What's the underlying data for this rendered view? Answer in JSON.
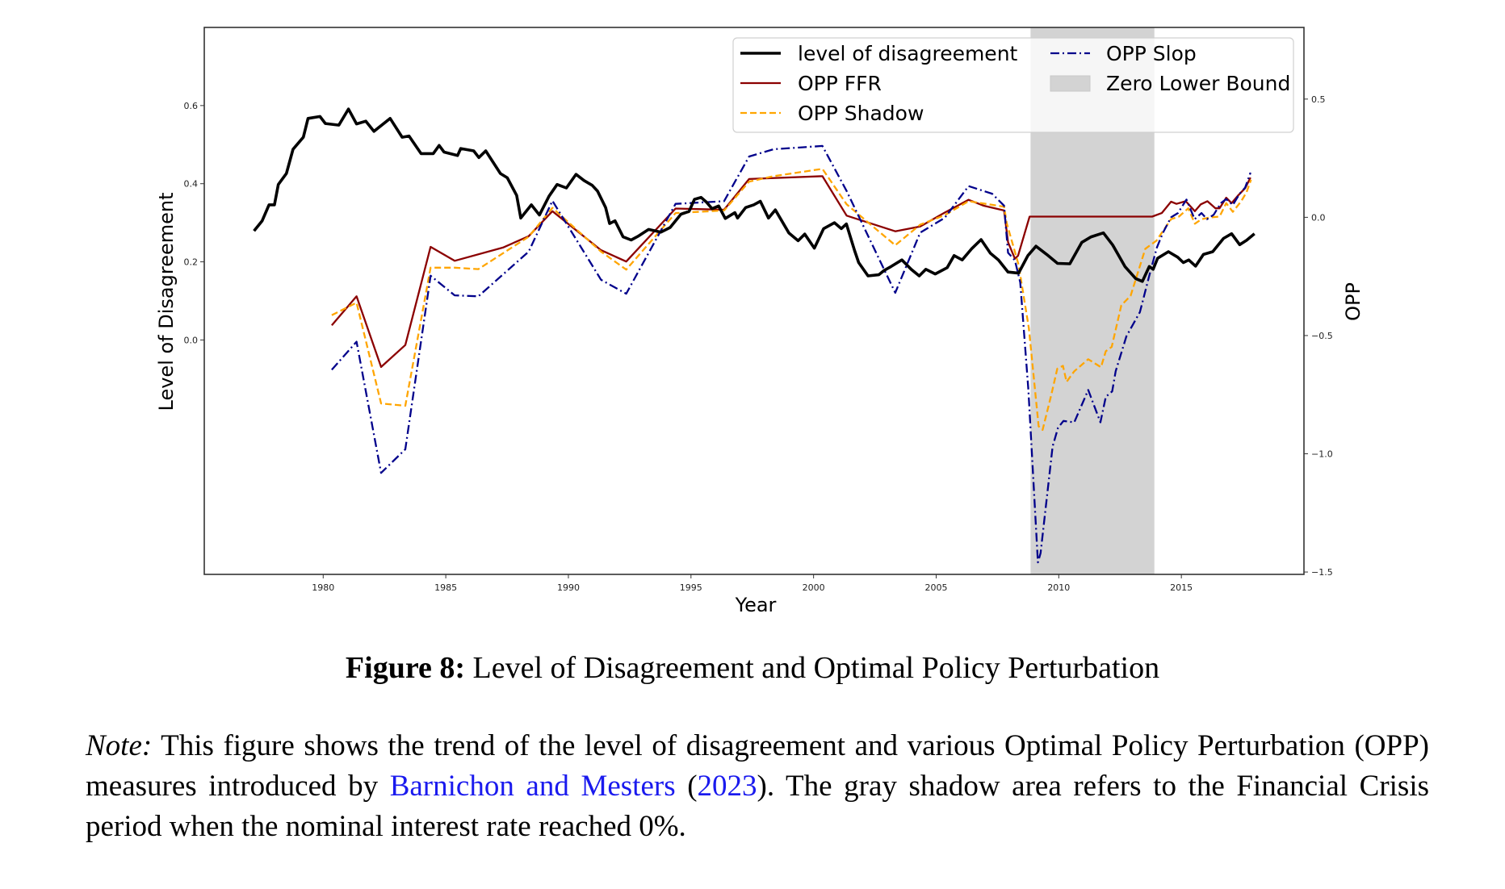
{
  "chart_data": {
    "type": "line",
    "title": "",
    "xlabel": "Year",
    "ylabel_left": "Level of Disagreement",
    "ylabel_right": "OPP",
    "xlim": [
      1975.15,
      2020.0
    ],
    "ylim_left": [
      -0.6,
      0.8
    ],
    "ylim_right": [
      -1.51,
      0.803
    ],
    "xticks": [
      1980,
      1985,
      1990,
      1995,
      2000,
      2005,
      2010,
      2015
    ],
    "xtick_labels": [
      "1980",
      "1985",
      "1990",
      "1995",
      "2000",
      "2005",
      "2010",
      "2015"
    ],
    "yticks_left": [
      0.0,
      0.2,
      0.4,
      0.6
    ],
    "ytick_labels_left": [
      "0.0",
      "0.2",
      "0.4",
      "0.6"
    ],
    "yticks_right": [
      -1.5,
      -1.0,
      -0.5,
      0.0,
      0.5
    ],
    "ytick_labels_right": [
      "−1.5",
      "−1.0",
      "−0.5",
      "0.0",
      "0.5"
    ],
    "grid": false,
    "legend_position": "top-right",
    "shaded_regions": [
      {
        "name": "Zero Lower Bound",
        "x_start": 2008.85,
        "x_end": 2013.9,
        "color": "#d3d3d3"
      }
    ],
    "series": [
      {
        "name": "level of disagreement",
        "axis": "left",
        "color": "#000000",
        "style": "solid",
        "x": [
          1977.18,
          1977.51,
          1977.79,
          1978.01,
          1978.17,
          1978.5,
          1978.77,
          1979.19,
          1979.38,
          1979.87,
          1980.09,
          1980.64,
          1981.03,
          1981.36,
          1981.74,
          1982.07,
          1982.73,
          1983.22,
          1983.5,
          1983.99,
          1984.49,
          1984.73,
          1984.93,
          1985.48,
          1985.61,
          1986.14,
          1986.35,
          1986.63,
          1987.23,
          1987.51,
          1987.89,
          1988.06,
          1988.49,
          1988.82,
          1989.21,
          1989.54,
          1989.92,
          1990.31,
          1990.64,
          1990.97,
          1991.19,
          1991.52,
          1991.68,
          1991.9,
          1992.23,
          1992.56,
          1992.83,
          1993.27,
          1993.77,
          1994.15,
          1994.59,
          1994.92,
          1995.14,
          1995.41,
          1995.63,
          1995.86,
          1996.13,
          1996.4,
          1996.79,
          1996.9,
          1997.23,
          1997.56,
          1997.83,
          1998.16,
          1998.44,
          1998.99,
          1999.37,
          1999.64,
          2000.03,
          2000.41,
          2000.85,
          2001.13,
          2001.34,
          2001.67,
          2001.84,
          2002.22,
          2002.66,
          2002.88,
          2003.16,
          2003.6,
          2003.98,
          2004.31,
          2004.58,
          2004.96,
          2005.45,
          2005.73,
          2006.06,
          2006.44,
          2006.83,
          2007.21,
          2007.54,
          2007.93,
          2008.36,
          2008.74,
          2009.07,
          2009.51,
          2009.95,
          2010.45,
          2010.94,
          2011.32,
          2011.82,
          2012.2,
          2012.7,
          2013.14,
          2013.41,
          2013.69,
          2013.85,
          2014.03,
          2014.47,
          2014.85,
          2015.08,
          2015.3,
          2015.58,
          2015.9,
          2016.28,
          2016.72,
          2017.05,
          2017.38,
          2017.66,
          2017.98
        ],
        "values": [
          0.279,
          0.305,
          0.346,
          0.346,
          0.398,
          0.426,
          0.488,
          0.519,
          0.567,
          0.572,
          0.554,
          0.55,
          0.591,
          0.553,
          0.56,
          0.534,
          0.567,
          0.519,
          0.522,
          0.477,
          0.477,
          0.498,
          0.481,
          0.472,
          0.49,
          0.484,
          0.467,
          0.484,
          0.426,
          0.415,
          0.37,
          0.312,
          0.346,
          0.32,
          0.368,
          0.398,
          0.389,
          0.424,
          0.408,
          0.396,
          0.381,
          0.339,
          0.298,
          0.305,
          0.264,
          0.256,
          0.265,
          0.283,
          0.276,
          0.288,
          0.322,
          0.329,
          0.36,
          0.365,
          0.353,
          0.336,
          0.343,
          0.311,
          0.326,
          0.312,
          0.339,
          0.346,
          0.355,
          0.312,
          0.333,
          0.274,
          0.254,
          0.271,
          0.235,
          0.285,
          0.3,
          0.285,
          0.297,
          0.229,
          0.198,
          0.164,
          0.167,
          0.178,
          0.188,
          0.205,
          0.181,
          0.164,
          0.181,
          0.169,
          0.185,
          0.216,
          0.205,
          0.233,
          0.257,
          0.222,
          0.205,
          0.174,
          0.171,
          0.216,
          0.24,
          0.219,
          0.196,
          0.195,
          0.25,
          0.264,
          0.274,
          0.243,
          0.188,
          0.157,
          0.15,
          0.188,
          0.181,
          0.209,
          0.226,
          0.212,
          0.198,
          0.205,
          0.189,
          0.219,
          0.226,
          0.26,
          0.272,
          0.244,
          0.255,
          0.272
        ]
      },
      {
        "name": "OPP FFR",
        "axis": "right",
        "color": "#8b0000",
        "style": "solid",
        "x": [
          1980.35,
          1981.36,
          1982.36,
          1983.35,
          1984.38,
          1985.36,
          1987.33,
          1988.38,
          1989.35,
          1991.33,
          1992.36,
          1994.37,
          1996.35,
          1997.37,
          2000.36,
          2001.35,
          2003.33,
          2004.35,
          2005.35,
          2006.32,
          2006.94,
          2007.77,
          2007.93,
          2008.21,
          2008.34,
          2008.81,
          2013.81,
          2014.2,
          2014.58,
          2014.8,
          2015.18,
          2015.55,
          2015.79,
          2016.06,
          2016.39,
          2016.56,
          2016.83,
          2017.05,
          2017.33,
          2017.6,
          2017.82
        ],
        "values": [
          -0.457,
          -0.334,
          -0.633,
          -0.54,
          -0.125,
          -0.184,
          -0.128,
          -0.08,
          0.026,
          -0.139,
          -0.187,
          0.037,
          0.032,
          0.162,
          0.174,
          0.007,
          -0.059,
          -0.039,
          0.02,
          0.074,
          0.049,
          0.029,
          -0.105,
          -0.175,
          -0.162,
          0.003,
          0.003,
          0.018,
          0.066,
          0.057,
          0.068,
          0.026,
          0.055,
          0.068,
          0.038,
          0.038,
          0.083,
          0.06,
          0.094,
          0.123,
          0.168
        ]
      },
      {
        "name": "OPP Shadow",
        "axis": "right",
        "color": "#ffa500",
        "style": "dashed",
        "x": [
          1980.35,
          1981.36,
          1982.36,
          1983.35,
          1984.38,
          1985.36,
          1986.33,
          1988.38,
          1989.35,
          1991.33,
          1992.36,
          1994.37,
          1996.35,
          1997.37,
          1998.37,
          2000.36,
          2001.35,
          2003.33,
          2004.35,
          2005.35,
          2006.32,
          2007.77,
          2007.88,
          2008.36,
          2008.78,
          2009.18,
          2009.34,
          2009.69,
          2009.94,
          2010.17,
          2010.32,
          2010.63,
          2011.2,
          2011.72,
          2011.92,
          2012.16,
          2012.55,
          2012.93,
          2013.53,
          2013.98,
          2014.58,
          2014.9,
          2015.28,
          2015.55,
          2015.82,
          2016.2,
          2016.56,
          2016.83,
          2017.1,
          2017.44,
          2017.66,
          2017.84
        ],
        "values": [
          -0.414,
          -0.361,
          -0.787,
          -0.797,
          -0.213,
          -0.213,
          -0.219,
          -0.082,
          0.04,
          -0.145,
          -0.221,
          0.018,
          0.029,
          0.151,
          0.174,
          0.205,
          0.055,
          -0.118,
          -0.031,
          0.009,
          0.068,
          0.045,
          -0.025,
          -0.2,
          -0.469,
          -0.884,
          -0.899,
          -0.753,
          -0.64,
          -0.628,
          -0.696,
          -0.651,
          -0.6,
          -0.634,
          -0.566,
          -0.548,
          -0.372,
          -0.332,
          -0.133,
          -0.099,
          -0.008,
          0.003,
          0.038,
          -0.027,
          -0.008,
          0.0,
          0.003,
          0.06,
          0.023,
          0.068,
          0.106,
          0.159
        ]
      },
      {
        "name": "OPP Slop",
        "axis": "right",
        "color": "#00008b",
        "style": "dashdot",
        "x": [
          1980.35,
          1981.36,
          1982.36,
          1983.35,
          1984.38,
          1985.36,
          1986.33,
          1988.38,
          1989.35,
          1991.33,
          1992.36,
          1994.37,
          1996.35,
          1997.37,
          1998.37,
          2000.36,
          2001.35,
          2003.33,
          2004.35,
          2005.35,
          2006.32,
          2007.28,
          2007.77,
          2007.93,
          2008.21,
          2008.43,
          2008.76,
          2009.15,
          2009.26,
          2009.75,
          2009.97,
          2010.19,
          2010.63,
          2011.2,
          2011.7,
          2011.92,
          2012.18,
          2012.32,
          2012.76,
          2013.31,
          2013.69,
          2014.0,
          2014.25,
          2014.58,
          2014.86,
          2015.21,
          2015.54,
          2015.82,
          2016.05,
          2016.32,
          2016.61,
          2016.83,
          2017.1,
          2017.38,
          2017.6,
          2017.82
        ],
        "values": [
          -0.645,
          -0.526,
          -1.081,
          -0.981,
          -0.247,
          -0.33,
          -0.334,
          -0.145,
          0.07,
          -0.264,
          -0.323,
          0.057,
          0.068,
          0.257,
          0.288,
          0.302,
          0.111,
          -0.319,
          -0.065,
          -0.002,
          0.132,
          0.1,
          0.049,
          -0.15,
          -0.182,
          -0.275,
          -0.73,
          -1.459,
          -1.42,
          -0.969,
          -0.89,
          -0.861,
          -0.867,
          -0.73,
          -0.867,
          -0.759,
          -0.736,
          -0.651,
          -0.503,
          -0.401,
          -0.247,
          -0.128,
          -0.065,
          0.0,
          0.018,
          0.075,
          -0.008,
          0.018,
          -0.008,
          0.011,
          0.06,
          0.077,
          0.052,
          0.1,
          0.125,
          0.189
        ]
      }
    ],
    "legend": [
      {
        "label": "level of disagreement",
        "series": "level of disagreement"
      },
      {
        "label": "OPP FFR",
        "series": "OPP FFR"
      },
      {
        "label": "OPP Shadow",
        "series": "OPP Shadow"
      },
      {
        "label": "OPP Slop",
        "series": "OPP Slop"
      },
      {
        "label": "Zero Lower Bound",
        "series": "Zero Lower Bound"
      }
    ]
  },
  "caption": {
    "label": "Figure 8:",
    "text": " Level of Disagreement and Optimal Policy Perturbation"
  },
  "note": {
    "label": "Note:",
    "text_before": " This figure shows the trend of the level of disagreement and various Optimal Policy Perturbation (OPP) measures introduced by ",
    "citation_authors": "Barnichon and Mesters",
    "citation_open": " (",
    "citation_year": "2023",
    "citation_close": ")",
    "text_after": ".  The gray shadow area refers to the Financial Crisis period when the nominal interest rate reached 0%."
  }
}
